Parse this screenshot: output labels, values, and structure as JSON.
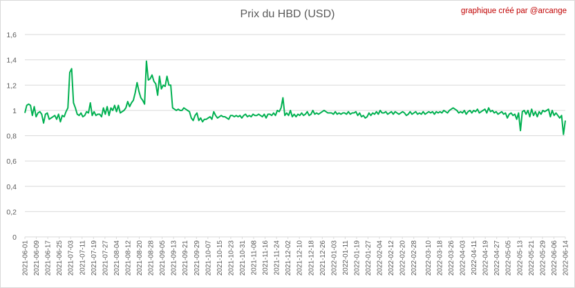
{
  "chart_data": {
    "type": "line",
    "title": "Prix du HBD (USD)",
    "credit": "graphique créé par @arcange",
    "xlabel": "",
    "ylabel": "",
    "ylim": [
      0,
      1.6
    ],
    "yticks": [
      "0",
      "0,2",
      "0,4",
      "0,6",
      "0,8",
      "1",
      "1,2",
      "1,4",
      "1,6"
    ],
    "grid": "horizontal",
    "legend": "none",
    "line_color": "#00b050",
    "x_start": "2021-06-01",
    "x_end": "2022-06-14",
    "xticks": [
      "2021-06-01",
      "2021-06-09",
      "2021-06-17",
      "2021-06-25",
      "2021-07-03",
      "2021-07-11",
      "2021-07-19",
      "2021-07-27",
      "2021-08-04",
      "2021-08-12",
      "2021-08-20",
      "2021-08-28",
      "2021-09-05",
      "2021-09-13",
      "2021-09-21",
      "2021-09-29",
      "2021-10-07",
      "2021-10-15",
      "2021-10-23",
      "2021-10-31",
      "2021-11-08",
      "2021-11-16",
      "2021-11-24",
      "2021-12-02",
      "2021-12-10",
      "2021-12-18",
      "2021-12-26",
      "2022-01-03",
      "2022-01-11",
      "2022-01-19",
      "2022-01-27",
      "2022-02-04",
      "2022-02-12",
      "2022-02-20",
      "2022-02-28",
      "2022-03-10",
      "2022-03-18",
      "2022-03-26",
      "2022-04-03",
      "2022-04-11",
      "2022-04-19",
      "2022-04-27",
      "2022-05-05",
      "2022-05-13",
      "2022-05-21",
      "2022-05-29",
      "2022-06-06",
      "2022-06-14"
    ],
    "series": [
      {
        "values": [
          0.98,
          1.04,
          1.05,
          1.04,
          0.96,
          1.03,
          0.95,
          0.98,
          0.99,
          0.97,
          0.9,
          0.97,
          0.98,
          0.93,
          0.94,
          0.95,
          0.96,
          0.93,
          0.97,
          0.91,
          0.96,
          0.95,
          0.99,
          1.02,
          1.3,
          1.33,
          1.06,
          1.02,
          0.97,
          0.96,
          0.98,
          0.95,
          0.96,
          0.99,
          0.98,
          1.06,
          0.96,
          0.99,
          0.96,
          0.97,
          0.97,
          0.95,
          1.02,
          0.97,
          1.03,
          0.96,
          1.02,
          1.0,
          1.04,
          0.99,
          1.04,
          0.98,
          0.99,
          1.0,
          1.02,
          1.07,
          1.03,
          1.06,
          1.08,
          1.14,
          1.22,
          1.15,
          1.1,
          1.08,
          1.05,
          1.39,
          1.24,
          1.25,
          1.28,
          1.23,
          1.21,
          1.12,
          1.27,
          1.17,
          1.2,
          1.19,
          1.27,
          1.2,
          1.2,
          1.02,
          1.01,
          1.0,
          1.01,
          1.0,
          1.0,
          1.02,
          1.01,
          1.0,
          0.99,
          0.94,
          0.92,
          0.96,
          0.98,
          0.92,
          0.94,
          0.91,
          0.93,
          0.93,
          0.94,
          0.95,
          0.93,
          0.99,
          0.96,
          0.94,
          0.95,
          0.96,
          0.95,
          0.95,
          0.94,
          0.93,
          0.96,
          0.96,
          0.95,
          0.96,
          0.95,
          0.96,
          0.94,
          0.96,
          0.97,
          0.95,
          0.96,
          0.95,
          0.97,
          0.96,
          0.96,
          0.97,
          0.96,
          0.95,
          0.97,
          0.94,
          0.97,
          0.97,
          0.96,
          0.98,
          0.96,
          1.0,
          0.99,
          1.02,
          1.1,
          0.96,
          0.98,
          0.96,
          1.0,
          0.95,
          0.97,
          0.95,
          0.97,
          0.96,
          0.98,
          0.96,
          0.97,
          0.99,
          0.96,
          0.97,
          1.0,
          0.97,
          0.98,
          0.97,
          0.98,
          0.99,
          1.0,
          0.99,
          0.98,
          0.98,
          0.98,
          0.97,
          0.99,
          0.97,
          0.98,
          0.97,
          0.98,
          0.98,
          0.97,
          0.99,
          0.97,
          0.98,
          0.98,
          0.99,
          0.96,
          0.98,
          0.95,
          0.96,
          0.94,
          0.95,
          0.98,
          0.96,
          0.98,
          0.97,
          0.99,
          0.97,
          1.0,
          0.98,
          0.98,
          0.99,
          0.97,
          0.98,
          0.99,
          0.97,
          0.99,
          0.98,
          0.97,
          0.98,
          0.99,
          0.98,
          0.96,
          0.97,
          0.99,
          0.97,
          0.98,
          0.99,
          0.97,
          0.98,
          0.97,
          0.99,
          0.97,
          0.98,
          0.99,
          0.98,
          0.99,
          0.97,
          0.99,
          0.98,
          0.99,
          0.98,
          1.0,
          0.99,
          0.98,
          1.0,
          1.01,
          1.02,
          1.01,
          1.0,
          0.98,
          0.99,
          0.98,
          1.0,
          0.97,
          0.99,
          1.0,
          0.98,
          1.0,
          0.99,
          1.01,
          0.98,
          0.99,
          1.0,
          1.01,
          0.98,
          1.02,
          0.99,
          1.0,
          0.98,
          0.99,
          0.97,
          0.98,
          0.99,
          0.97,
          0.98,
          0.94,
          0.97,
          0.98,
          0.96,
          0.97,
          0.93,
          0.98,
          0.84,
          0.99,
          1.0,
          0.97,
          1.0,
          0.95,
          1.01,
          0.96,
          0.99,
          0.95,
          0.99,
          0.97,
          1.0,
          0.99,
          1.0,
          1.01,
          0.95,
          1.0,
          0.96,
          0.98,
          0.96,
          0.94,
          0.96,
          0.81,
          0.92
        ]
      }
    ]
  }
}
